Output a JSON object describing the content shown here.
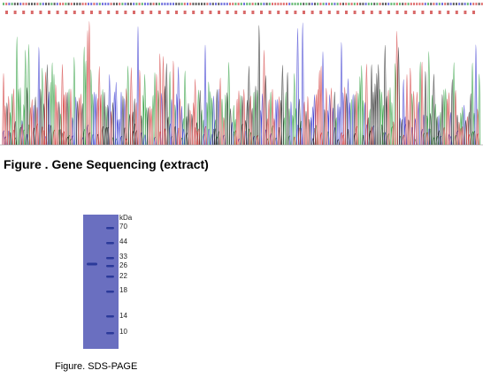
{
  "sequencing": {
    "title": "Figure . Gene Sequencing (extract)",
    "trace_colors": {
      "A": "#2e9e3e",
      "C": "#3a3ad0",
      "G": "#222222",
      "T": "#d23a3a"
    },
    "base_row_color": "#d96a6a"
  },
  "gel": {
    "caption": "Figure. SDS-PAGE",
    "unit_label": "kDa",
    "lane_color": "#6a6fc0",
    "band_color": "#2b3a9a",
    "markers": [
      {
        "label": "70"
      },
      {
        "label": "44"
      },
      {
        "label": "33"
      },
      {
        "label": "26"
      },
      {
        "label": "22"
      },
      {
        "label": "18"
      },
      {
        "label": "14"
      },
      {
        "label": "10"
      }
    ],
    "sample_band": "27"
  }
}
